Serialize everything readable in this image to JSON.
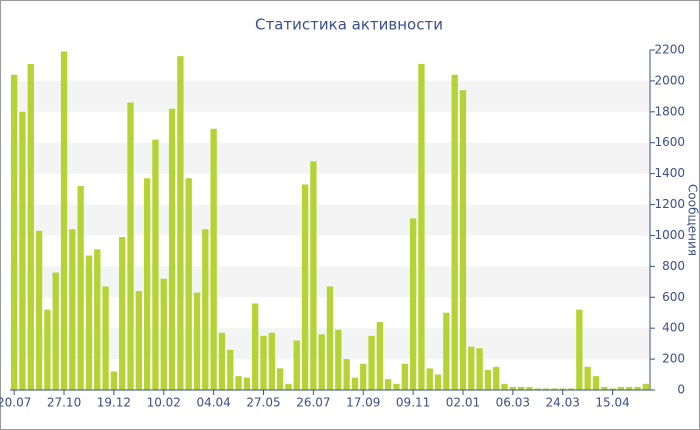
{
  "chart_data": {
    "type": "bar",
    "title": "Статистика активности",
    "y_label": "Сообщения",
    "categories": [
      "20.07",
      null,
      null,
      null,
      null,
      null,
      "27.10",
      null,
      null,
      null,
      null,
      null,
      "19.12",
      null,
      null,
      null,
      null,
      null,
      "10.02",
      null,
      null,
      null,
      null,
      null,
      "04.04",
      null,
      null,
      null,
      null,
      null,
      "27.05",
      null,
      null,
      null,
      null,
      null,
      "26.07",
      null,
      null,
      null,
      null,
      null,
      "17.09",
      null,
      null,
      null,
      null,
      null,
      "09.11",
      null,
      null,
      null,
      null,
      null,
      "02.01",
      null,
      null,
      null,
      null,
      null,
      "06.03",
      null,
      null,
      null,
      null,
      null,
      "24.03",
      null,
      null,
      null,
      null,
      null,
      "15.04",
      null,
      null,
      null,
      null
    ],
    "values": [
      2040,
      1800,
      2110,
      1030,
      520,
      760,
      2190,
      1040,
      1320,
      870,
      910,
      670,
      120,
      990,
      1860,
      640,
      1370,
      1620,
      720,
      1820,
      2160,
      1370,
      630,
      1040,
      1690,
      370,
      260,
      90,
      80,
      560,
      350,
      370,
      140,
      40,
      320,
      1330,
      1480,
      360,
      670,
      390,
      200,
      80,
      170,
      350,
      440,
      70,
      40,
      170,
      1110,
      2110,
      140,
      100,
      500,
      2040,
      1940,
      280,
      270,
      130,
      150,
      40,
      20,
      20,
      20,
      10,
      10,
      10,
      10,
      10,
      520,
      150,
      90,
      20,
      10,
      20,
      20,
      20,
      40
    ],
    "color": "#b5d334",
    "ylim": [
      0,
      2200
    ],
    "yticks": [
      0,
      200,
      400,
      600,
      800,
      1000,
      1200,
      1400,
      1600,
      1800,
      2000,
      2200
    ],
    "grid": true,
    "y_axis_side": "right"
  }
}
